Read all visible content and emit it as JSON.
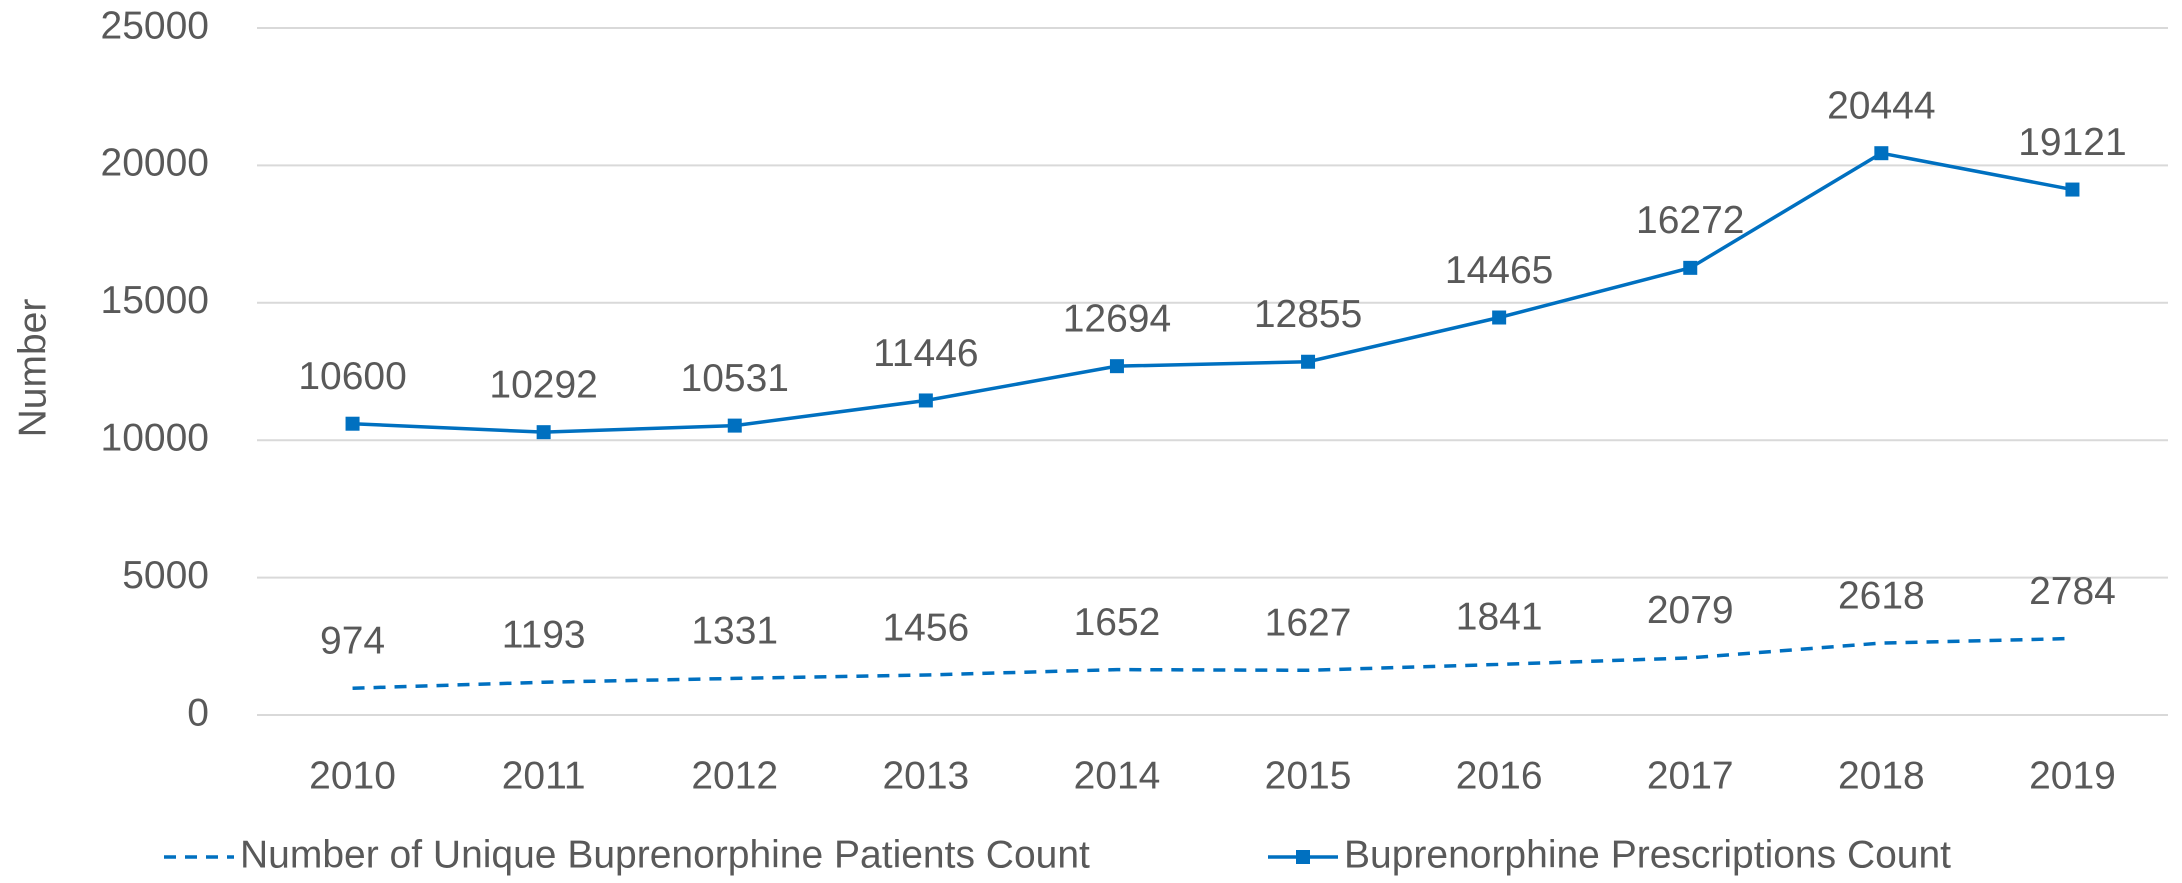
{
  "chart_data": {
    "type": "line",
    "y_label": "Number",
    "categories": [
      "2010",
      "2011",
      "2012",
      "2013",
      "2014",
      "2015",
      "2016",
      "2017",
      "2018",
      "2019"
    ],
    "series": [
      {
        "name": "Number of Unique Buprenorphine Patients Count",
        "color": "#0070c0",
        "dashed": true,
        "marker": "none",
        "values": [
          974,
          1193,
          1331,
          1456,
          1652,
          1627,
          1841,
          2079,
          2618,
          2784
        ]
      },
      {
        "name": "Buprenorphine Prescriptions Count",
        "color": "#0070c0",
        "dashed": false,
        "marker": "square",
        "values": [
          10600,
          10292,
          10531,
          11446,
          12694,
          12855,
          14465,
          16272,
          20444,
          19121
        ]
      }
    ],
    "ylim": [
      0,
      25000
    ],
    "yticks": [
      0,
      5000,
      10000,
      15000,
      20000,
      25000
    ],
    "grid": true,
    "legend": "bottom",
    "data_labels": true
  }
}
